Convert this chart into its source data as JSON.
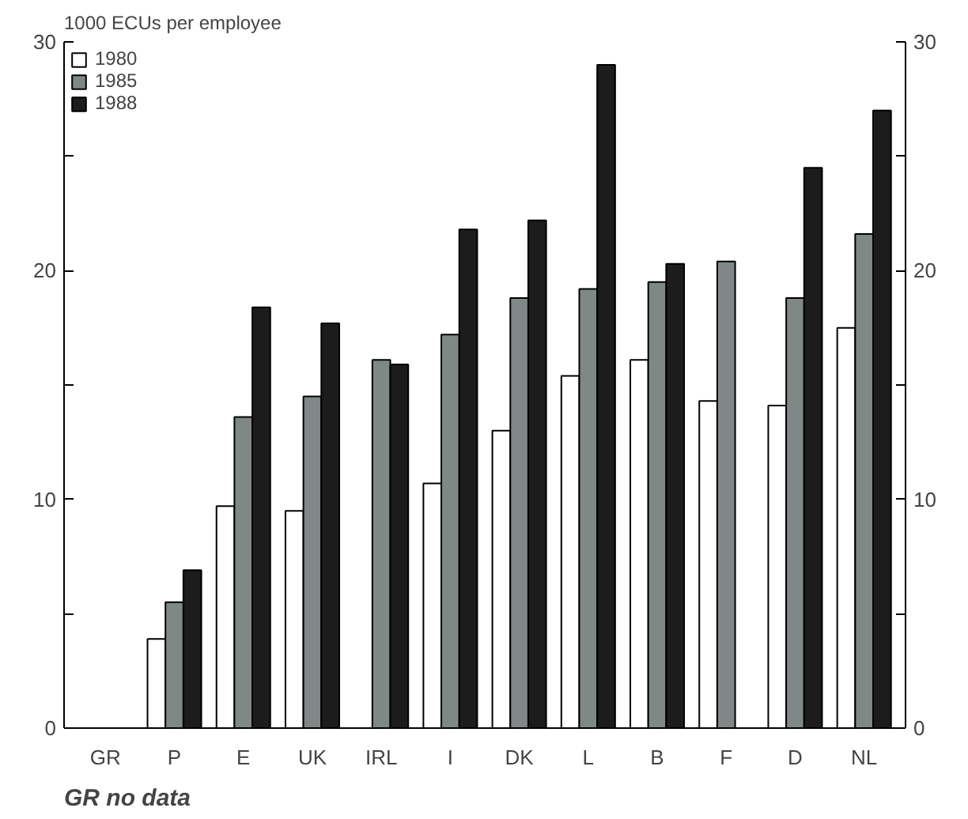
{
  "chart_data": {
    "type": "bar",
    "ylabel": "1000 ECUs per employee",
    "categories": [
      "GR",
      "P",
      "E",
      "UK",
      "IRL",
      "I",
      "DK",
      "L",
      "B",
      "F",
      "D",
      "NL"
    ],
    "series": [
      {
        "name": "1980",
        "color": "#ffffff",
        "values": [
          null,
          3.9,
          9.7,
          9.5,
          null,
          10.7,
          13.0,
          15.4,
          16.1,
          14.3,
          14.1,
          17.5
        ]
      },
      {
        "name": "1985",
        "color": "#7f8886",
        "values": [
          null,
          5.5,
          13.6,
          14.5,
          16.1,
          17.2,
          18.8,
          19.2,
          19.5,
          20.4,
          18.8,
          21.6
        ]
      },
      {
        "name": "1988",
        "color": "#1c1c1c",
        "values": [
          null,
          6.9,
          18.4,
          17.7,
          15.9,
          21.8,
          22.2,
          29.0,
          20.3,
          null,
          24.5,
          27.0
        ]
      }
    ],
    "ylim": [
      0,
      30
    ],
    "yticks": [
      0,
      {
        "value": 5,
        "label": null
      },
      10,
      {
        "value": 15,
        "label": null
      },
      20,
      {
        "value": 25,
        "label": null
      },
      30
    ],
    "y2lim": [
      0,
      30
    ],
    "y2ticks": [
      0,
      {
        "value": 5,
        "label": null
      },
      10,
      {
        "value": 15,
        "label": null
      },
      20,
      {
        "value": 25,
        "label": null
      },
      30
    ],
    "annotations": [
      "GR no data"
    ],
    "legend": "top left",
    "grid": false
  }
}
